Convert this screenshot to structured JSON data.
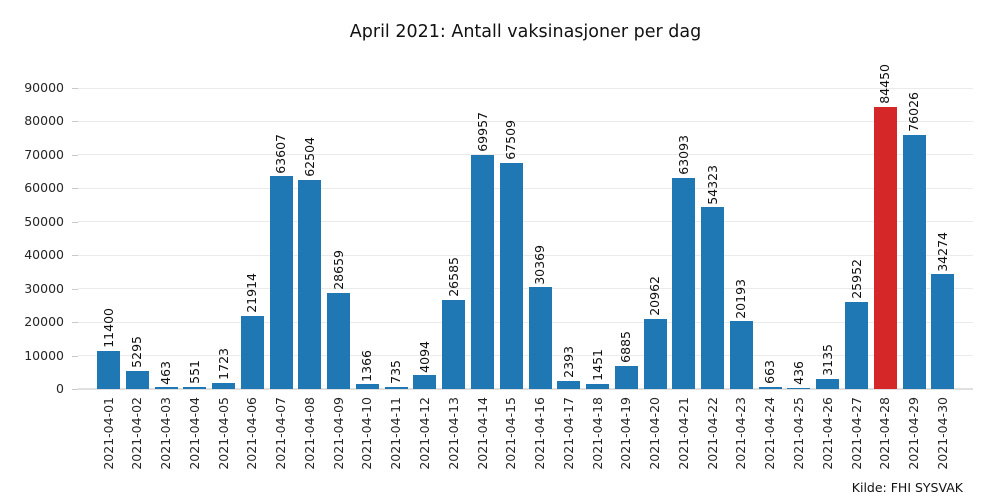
{
  "title": "April 2021: Antall vaksinasjoner per dag",
  "source_note": "Kilde: FHI SYSVAK",
  "colors": {
    "bar": "#1f77b4",
    "highlight_bar": "#d62728",
    "gridline": "#ebebeb",
    "baseline": "#e0e0e0",
    "text": "#111111"
  },
  "chart_data": {
    "type": "bar",
    "title": "April 2021: Antall vaksinasjoner per dag",
    "xlabel": "",
    "ylabel": "",
    "categories": [
      "2021-04-01",
      "2021-04-02",
      "2021-04-03",
      "2021-04-04",
      "2021-04-05",
      "2021-04-06",
      "2021-04-07",
      "2021-04-08",
      "2021-04-09",
      "2021-04-10",
      "2021-04-11",
      "2021-04-12",
      "2021-04-13",
      "2021-04-14",
      "2021-04-15",
      "2021-04-16",
      "2021-04-17",
      "2021-04-18",
      "2021-04-19",
      "2021-04-20",
      "2021-04-21",
      "2021-04-22",
      "2021-04-23",
      "2021-04-24",
      "2021-04-25",
      "2021-04-26",
      "2021-04-27",
      "2021-04-28",
      "2021-04-29",
      "2021-04-30"
    ],
    "values": [
      11400,
      5295,
      463,
      551,
      1723,
      21914,
      63607,
      62504,
      28659,
      1366,
      735,
      4094,
      26585,
      69957,
      67509,
      30369,
      2393,
      1451,
      6885,
      20962,
      63093,
      54323,
      20193,
      663,
      436,
      3135,
      25952,
      84450,
      76026,
      34274
    ],
    "bar_value_labels_shown": true,
    "highlight_index": 27,
    "highlight_category": "2021-04-28",
    "ylim": [
      0,
      90000
    ],
    "yticks": [
      0,
      10000,
      20000,
      30000,
      40000,
      50000,
      60000,
      70000,
      80000,
      90000
    ],
    "grid": true,
    "legend": "none",
    "annotation": "Kilde: FHI SYSVAK"
  }
}
